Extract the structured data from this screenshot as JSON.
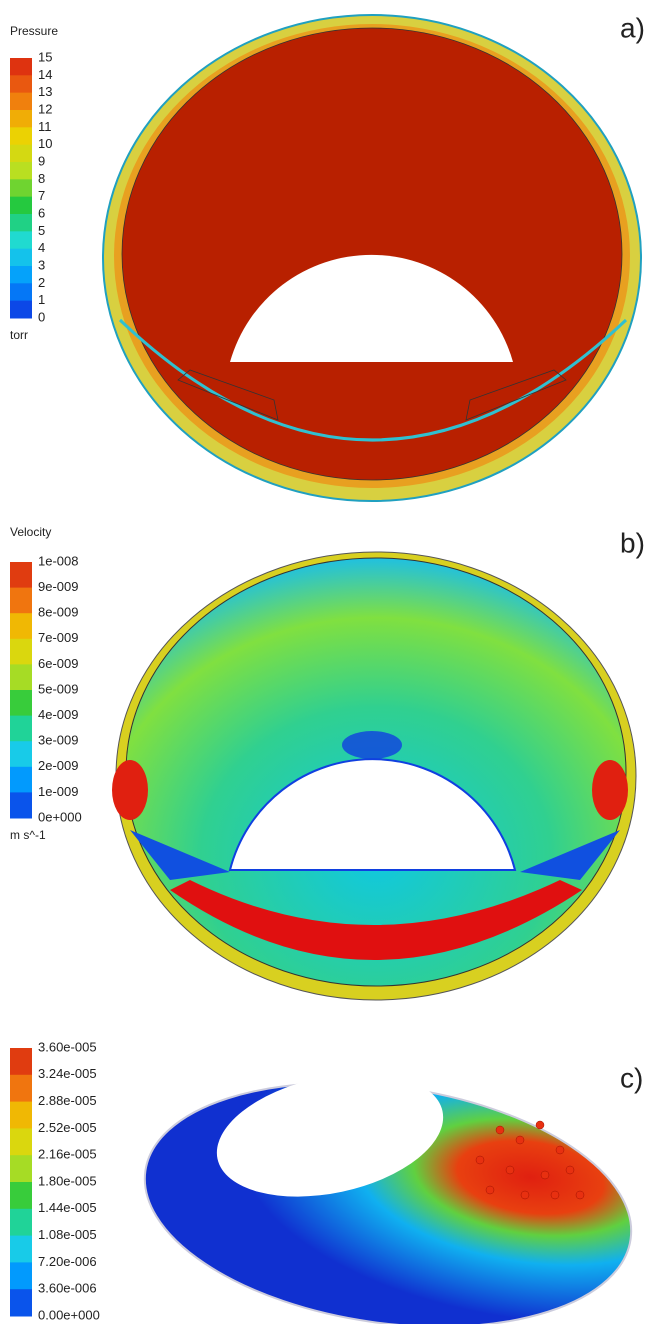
{
  "panels": [
    {
      "label": "a)",
      "legend": {
        "title": "Pressure",
        "ticks": [
          15,
          14,
          13,
          12,
          11,
          10,
          9,
          8,
          7,
          6,
          5,
          4,
          3,
          2,
          1,
          0
        ],
        "unit": "torr"
      }
    },
    {
      "label": "b)",
      "legend": {
        "title": "Velocity",
        "ticks": [
          "1e-008",
          "9e-009",
          "8e-009",
          "7e-009",
          "6e-009",
          "5e-009",
          "4e-009",
          "3e-009",
          "2e-009",
          "1e-009",
          "0e+000"
        ],
        "unit": "m s^-1"
      }
    },
    {
      "label": "c)",
      "legend": {
        "ticks": [
          "3.60e-005",
          "3.24e-005",
          "2.88e-005",
          "2.52e-005",
          "2.16e-005",
          "1.80e-005",
          "1.44e-005",
          "1.08e-005",
          "7.20e-006",
          "3.60e-006",
          "0.00e+000"
        ]
      }
    }
  ]
}
